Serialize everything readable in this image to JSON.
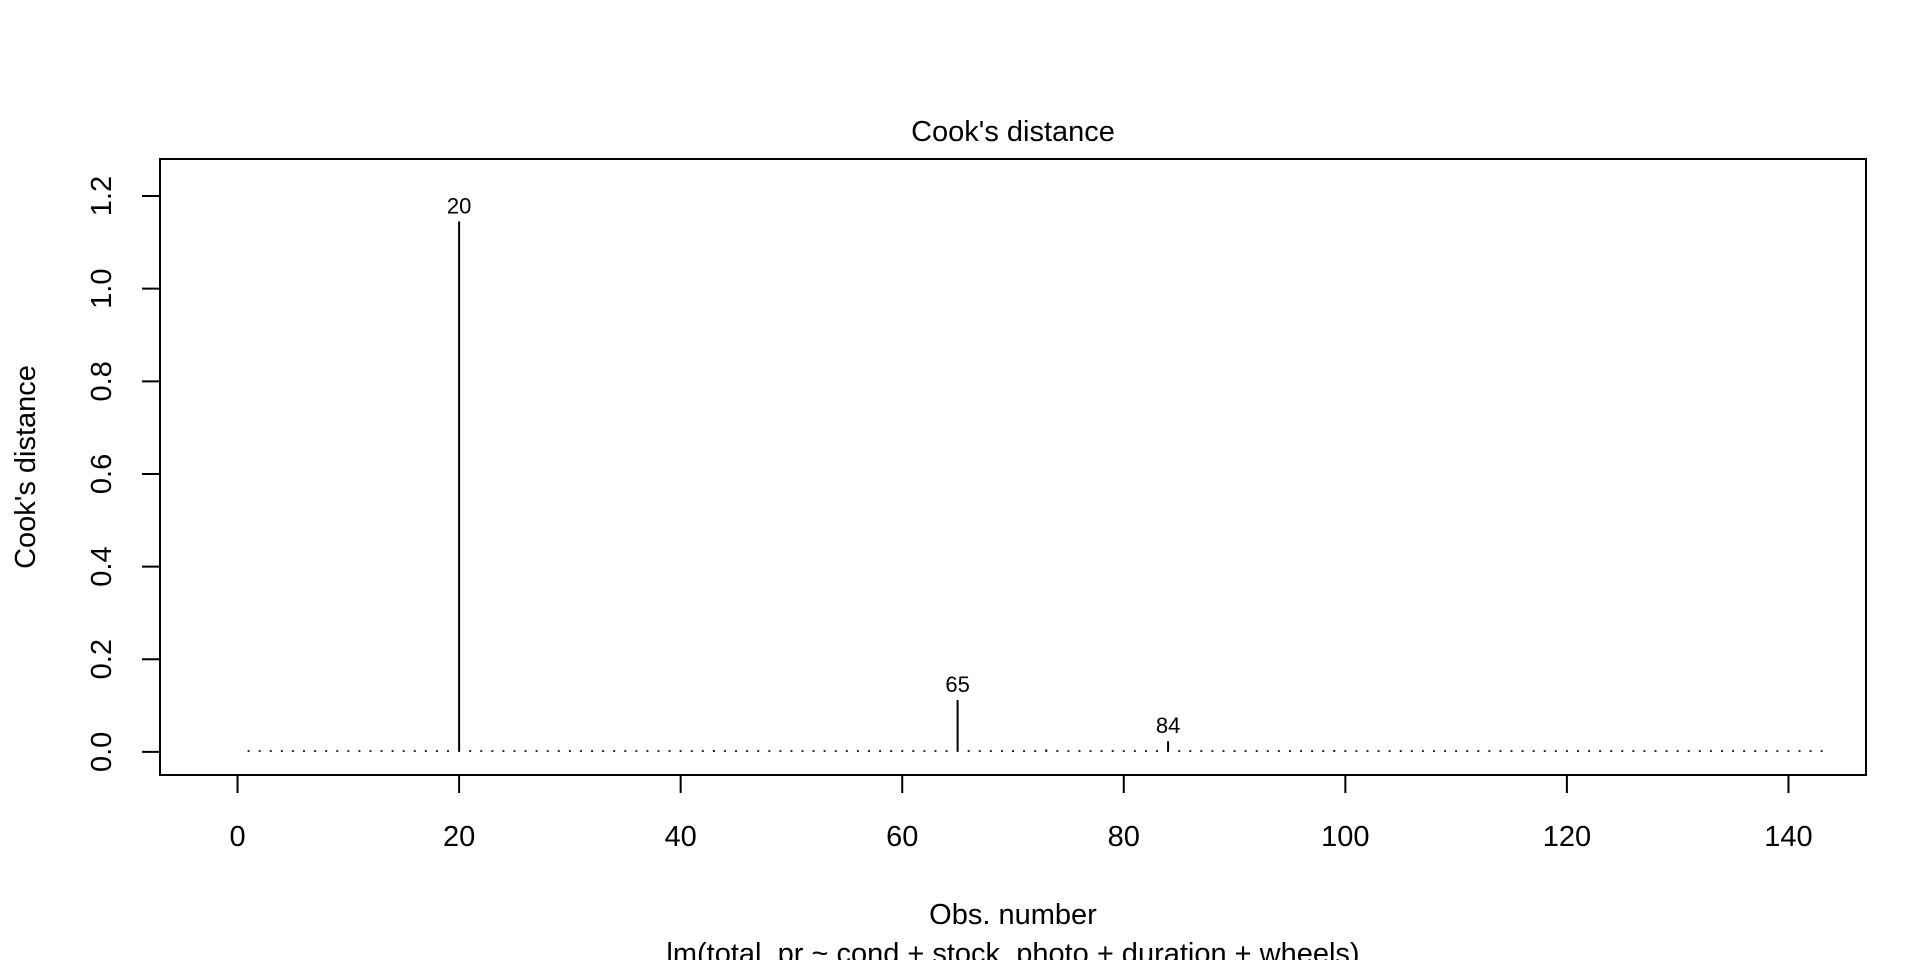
{
  "chart_data": {
    "type": "bar",
    "style": "spike",
    "title": "Cook's distance",
    "xlabel": "Obs. number",
    "subtitle": "lm(total_pr ~ cond + stock_photo + duration + wheels)",
    "ylabel": "Cook's distance",
    "xlim": [
      -7,
      147
    ],
    "ylim": [
      -0.05,
      1.28
    ],
    "xticks": [
      0,
      20,
      40,
      60,
      80,
      100,
      120,
      140
    ],
    "xtick_labels": [
      "0",
      "20",
      "40",
      "60",
      "80",
      "100",
      "120",
      "140"
    ],
    "yticks": [
      0.0,
      0.2,
      0.4,
      0.6,
      0.8,
      1.0,
      1.2
    ],
    "ytick_labels": [
      "0.0",
      "0.2",
      "0.4",
      "0.6",
      "0.8",
      "1.0",
      "1.2"
    ],
    "grid": false,
    "n_obs": 143,
    "highlighted": [
      {
        "obs": 20,
        "label": "20",
        "value": 1.145
      },
      {
        "obs": 65,
        "label": "65",
        "value": 0.112
      },
      {
        "obs": 84,
        "label": "84",
        "value": 0.023
      }
    ],
    "minor_values": [
      {
        "obs": 41,
        "value": 0.003
      },
      {
        "obs": 43,
        "value": 0.004
      },
      {
        "obs": 53,
        "value": 0.003
      },
      {
        "obs": 54,
        "value": 0.003
      },
      {
        "obs": 60,
        "value": 0.003
      },
      {
        "obs": 70,
        "value": 0.003
      },
      {
        "obs": 73,
        "value": 0.005
      },
      {
        "obs": 76,
        "value": 0.003
      },
      {
        "obs": 99,
        "value": 0.004
      },
      {
        "obs": 121,
        "value": 0.003
      },
      {
        "obs": 125,
        "value": 0.002
      }
    ],
    "baseline_value": 0.001
  }
}
